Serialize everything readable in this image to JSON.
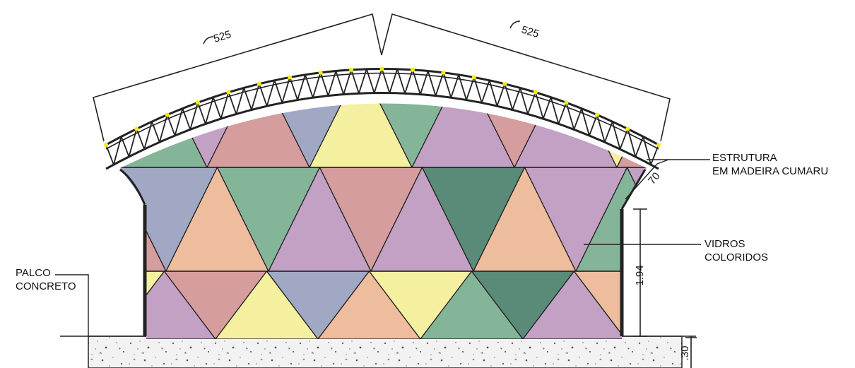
{
  "labels": {
    "palco_line1": "PALCO",
    "palco_line2": "CONCRETO",
    "estrutura_line1": "ESTRUTURA",
    "estrutura_line2": "EM MADEIRA CUMARU",
    "vidros_line1": "VIDROS",
    "vidros_line2": "COLORIDOS"
  },
  "dimensions": {
    "arc_left": "525",
    "arc_right": "525",
    "truss_depth": "70",
    "wall_height": "1.94",
    "platform_height": ".30"
  },
  "colors": {
    "green": "#85b598",
    "mauve": "#c3a1c4",
    "rose": "#d69d9e",
    "blue": "#a1a8c3",
    "yellow": "#f5f0a0",
    "peach": "#eebd9e",
    "dark_green": "#5a8a78",
    "line": "#222222",
    "node": "#f2ee00",
    "concrete": "#f2f2f2"
  }
}
